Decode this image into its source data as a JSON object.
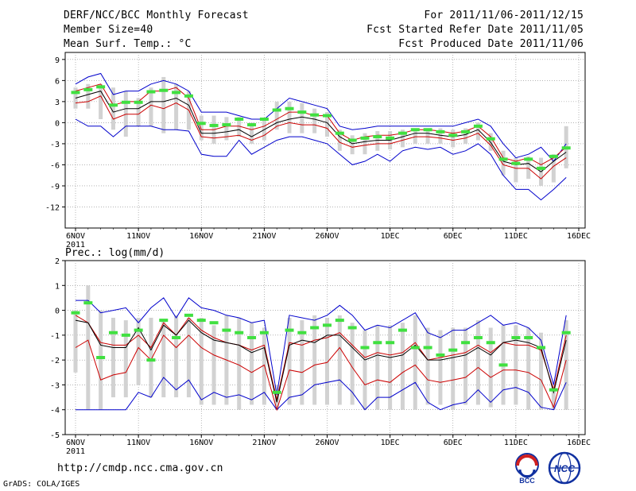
{
  "header": {
    "title": "DERF/NCC/BCC Monthly Forecast",
    "member_size": "Member Size=40",
    "variable": "Mean Surf. Temp.: °C",
    "period": "For 2011/11/06-2011/12/15",
    "start_date": "Fcst Started Refer Date 2011/11/05",
    "produced_date": "Fcst Produced Date 2011/11/06"
  },
  "footer": {
    "url": "http://cmdp.ncc.cma.gov.cn",
    "credit": "GrADS: COLA/IGES",
    "logo_left": "BCC",
    "logo_right": "NCC"
  },
  "colors": {
    "envelope": "#0000cc",
    "spread": "#cc0000",
    "mean": "#000000",
    "box": "#d2d2d2",
    "marker": "#40e040",
    "grid": "#888888"
  },
  "chart_data": [
    {
      "type": "box",
      "name": "temperature",
      "title": "Mean Surf. Temp.: °C",
      "ylim": [
        -15,
        10
      ],
      "yticks": [
        9,
        6,
        3,
        0,
        -3,
        -6,
        -9,
        -12
      ],
      "xlim": [
        0,
        40
      ],
      "xticks": [
        {
          "day": 0,
          "label": "6NOV"
        },
        {
          "day": 5,
          "label": "11NOV"
        },
        {
          "day": 10,
          "label": "16NOV"
        },
        {
          "day": 15,
          "label": "21NOV"
        },
        {
          "day": 20,
          "label": "26NOV"
        },
        {
          "day": 25,
          "label": "1DEC"
        },
        {
          "day": 30,
          "label": "6DEC"
        },
        {
          "day": 35,
          "label": "11DEC"
        },
        {
          "day": 40,
          "label": "16DEC"
        }
      ],
      "year_label": "2011",
      "x": [
        0,
        1,
        2,
        3,
        4,
        5,
        6,
        7,
        8,
        9,
        10,
        11,
        12,
        13,
        14,
        15,
        16,
        17,
        18,
        19,
        20,
        21,
        22,
        23,
        24,
        25,
        26,
        27,
        28,
        29,
        30,
        31,
        32,
        33,
        34,
        35,
        36,
        37,
        38,
        39
      ],
      "max": [
        5.5,
        6.5,
        7.0,
        4.0,
        4.5,
        4.5,
        5.5,
        6.0,
        5.5,
        4.5,
        1.5,
        1.5,
        1.5,
        1.0,
        0.5,
        0.5,
        2.0,
        3.5,
        3.0,
        2.5,
        2.0,
        -0.5,
        -1.0,
        -0.8,
        -0.5,
        -0.5,
        -0.5,
        -0.5,
        -0.5,
        -0.5,
        -0.5,
        0.0,
        0.5,
        -0.5,
        -3.0,
        -5.0,
        -4.5,
        -3.5,
        -5.5,
        -3.0
      ],
      "upper": [
        4.5,
        5.0,
        5.5,
        2.5,
        3.0,
        3.0,
        4.5,
        4.5,
        5.0,
        3.5,
        -1.0,
        -1.0,
        -0.5,
        -0.5,
        -1.0,
        -0.5,
        0.5,
        1.5,
        1.5,
        1.0,
        1.0,
        -1.5,
        -2.5,
        -2.0,
        -1.8,
        -1.8,
        -1.5,
        -1.0,
        -1.0,
        -1.2,
        -1.5,
        -1.2,
        -0.5,
        -2.0,
        -5.0,
        -5.5,
        -5.0,
        -6.0,
        -5.0,
        -3.5
      ],
      "mean": [
        3.5,
        4.0,
        4.5,
        1.5,
        2.0,
        2.0,
        3.0,
        3.0,
        3.5,
        2.5,
        -1.5,
        -1.5,
        -1.3,
        -1.0,
        -2.0,
        -1.0,
        0.0,
        0.5,
        0.8,
        0.5,
        0.0,
        -2.0,
        -3.0,
        -2.7,
        -2.5,
        -2.5,
        -2.0,
        -1.5,
        -1.5,
        -1.8,
        -2.0,
        -1.7,
        -1.0,
        -2.8,
        -5.5,
        -6.0,
        -5.8,
        -7.0,
        -5.5,
        -4.2
      ],
      "lower": [
        2.8,
        3.0,
        3.8,
        0.5,
        1.2,
        1.2,
        2.5,
        2.0,
        2.8,
        1.8,
        -2.0,
        -2.2,
        -2.0,
        -1.8,
        -2.5,
        -1.8,
        -0.5,
        0.0,
        -0.3,
        -0.3,
        -0.8,
        -2.8,
        -3.5,
        -3.2,
        -3.0,
        -3.0,
        -2.5,
        -2.0,
        -2.0,
        -2.2,
        -2.5,
        -2.2,
        -1.5,
        -3.2,
        -6.0,
        -6.5,
        -6.5,
        -8.0,
        -6.2,
        -5.0
      ],
      "min": [
        0.5,
        -0.5,
        -0.5,
        -2.0,
        -0.5,
        -0.5,
        -0.5,
        -1.0,
        -1.0,
        -1.2,
        -4.5,
        -4.8,
        -4.8,
        -2.5,
        -4.5,
        -3.5,
        -2.5,
        -2.0,
        -2.0,
        -2.5,
        -3.0,
        -4.5,
        -6.0,
        -5.5,
        -4.5,
        -5.5,
        -4.0,
        -3.5,
        -3.8,
        -3.5,
        -4.5,
        -4.0,
        -3.0,
        -4.5,
        -7.5,
        -9.5,
        -9.5,
        -11.0,
        -9.5,
        -7.8
      ],
      "box_hi": [
        5.0,
        5.5,
        5.5,
        5.0,
        4.5,
        3.5,
        5.0,
        6.5,
        5.5,
        4.5,
        1.0,
        1.0,
        0.8,
        0.8,
        0.0,
        0.5,
        3.0,
        3.0,
        2.8,
        2.0,
        1.5,
        -1.0,
        -1.8,
        -1.5,
        -1.2,
        -1.2,
        -1.0,
        -0.8,
        -0.8,
        -0.8,
        -1.0,
        -0.8,
        0.0,
        -1.5,
        -4.0,
        -5.0,
        -4.8,
        -5.0,
        -4.5,
        -0.5
      ],
      "box_lo": [
        2.0,
        2.0,
        0.5,
        -1.0,
        -2.0,
        -0.5,
        -0.5,
        -1.5,
        -1.0,
        -1.0,
        -2.5,
        -3.0,
        -2.5,
        -2.0,
        -3.0,
        -2.5,
        -1.0,
        -1.5,
        -1.5,
        -1.5,
        -2.0,
        -4.0,
        -4.5,
        -4.5,
        -4.0,
        -3.8,
        -3.5,
        -3.0,
        -3.0,
        -3.0,
        -3.5,
        -3.0,
        -2.5,
        -4.0,
        -7.5,
        -8.5,
        -8.0,
        -9.0,
        -8.5,
        -6.5
      ],
      "marker": [
        4.3,
        4.7,
        5.1,
        2.5,
        2.9,
        2.9,
        4.4,
        4.6,
        4.3,
        3.8,
        -0.1,
        -0.4,
        -0.3,
        0.5,
        -0.3,
        0.5,
        1.8,
        2.0,
        1.5,
        1.1,
        1.0,
        -1.5,
        -2.5,
        -2.2,
        -2.0,
        -2.2,
        -1.5,
        -1.0,
        -1.0,
        -1.3,
        -1.8,
        -1.3,
        -0.5,
        -2.3,
        -5.2,
        -5.8,
        -5.2,
        -6.5,
        -4.8,
        -3.6
      ]
    },
    {
      "type": "box",
      "name": "precipitation",
      "title": "Prec.: log(mm/d)",
      "ylim": [
        -5,
        2
      ],
      "yticks": [
        2,
        1,
        0,
        -1,
        -2,
        -3,
        -4,
        -5
      ],
      "xlim": [
        0,
        40
      ],
      "xticks": [
        {
          "day": 0,
          "label": "6NOV"
        },
        {
          "day": 5,
          "label": "11NOV"
        },
        {
          "day": 10,
          "label": "16NOV"
        },
        {
          "day": 15,
          "label": "21NOV"
        },
        {
          "day": 20,
          "label": "26NOV"
        },
        {
          "day": 25,
          "label": "1DEC"
        },
        {
          "day": 30,
          "label": "6DEC"
        },
        {
          "day": 35,
          "label": "11DEC"
        },
        {
          "day": 40,
          "label": "16DEC"
        }
      ],
      "year_label": "2011",
      "x": [
        0,
        1,
        2,
        3,
        4,
        5,
        6,
        7,
        8,
        9,
        10,
        11,
        12,
        13,
        14,
        15,
        16,
        17,
        18,
        19,
        20,
        21,
        22,
        23,
        24,
        25,
        26,
        27,
        28,
        29,
        30,
        31,
        32,
        33,
        34,
        35,
        36,
        37,
        38,
        39
      ],
      "max": [
        0.4,
        0.4,
        -0.1,
        0.0,
        0.1,
        -0.5,
        0.1,
        0.5,
        -0.3,
        0.5,
        0.1,
        0.0,
        -0.2,
        -0.3,
        -0.5,
        -0.4,
        -3.4,
        -0.2,
        -0.3,
        -0.4,
        -0.2,
        0.2,
        -0.2,
        -0.8,
        -0.6,
        -0.7,
        -0.4,
        -0.1,
        -0.9,
        -1.1,
        -0.8,
        -0.8,
        -0.5,
        -0.2,
        -0.6,
        -0.5,
        -0.7,
        -1.2,
        -3.0,
        -0.2
      ],
      "upper": [
        -0.2,
        -0.5,
        -1.3,
        -1.4,
        -1.4,
        -1.0,
        -1.5,
        -0.5,
        -1.0,
        -0.3,
        -0.8,
        -1.1,
        -1.3,
        -1.4,
        -1.6,
        -1.4,
        -3.6,
        -1.3,
        -1.4,
        -1.2,
        -1.1,
        -0.9,
        -1.4,
        -1.9,
        -1.7,
        -1.8,
        -1.7,
        -1.3,
        -2.0,
        -1.9,
        -1.8,
        -1.7,
        -1.4,
        -1.7,
        -1.3,
        -1.4,
        -1.4,
        -1.6,
        -3.2,
        -1.0
      ],
      "mean": [
        -0.4,
        -0.5,
        -1.4,
        -1.5,
        -1.5,
        -0.7,
        -1.6,
        -0.6,
        -1.0,
        -0.4,
        -0.9,
        -1.2,
        -1.3,
        -1.4,
        -1.7,
        -1.5,
        -3.7,
        -1.4,
        -1.2,
        -1.3,
        -1.0,
        -1.0,
        -1.5,
        -2.0,
        -1.8,
        -1.9,
        -1.8,
        -1.4,
        -2.0,
        -2.0,
        -1.9,
        -1.8,
        -1.5,
        -1.8,
        -1.3,
        -1.2,
        -1.3,
        -1.5,
        -3.3,
        -1.2
      ],
      "lower": [
        -1.5,
        -1.2,
        -2.8,
        -2.6,
        -2.5,
        -1.5,
        -2.0,
        -1.0,
        -1.5,
        -1.0,
        -1.5,
        -1.8,
        -2.0,
        -2.2,
        -2.5,
        -2.2,
        -4.0,
        -2.4,
        -2.5,
        -2.2,
        -2.1,
        -1.5,
        -2.3,
        -3.0,
        -2.8,
        -2.9,
        -2.5,
        -2.2,
        -2.8,
        -2.9,
        -2.8,
        -2.7,
        -2.3,
        -2.7,
        -2.4,
        -2.4,
        -2.5,
        -2.8,
        -3.9,
        -2.0
      ],
      "min": [
        -4.0,
        -4.0,
        -4.0,
        -4.0,
        -4.0,
        -3.3,
        -3.5,
        -2.7,
        -3.2,
        -2.8,
        -3.6,
        -3.3,
        -3.5,
        -3.4,
        -3.6,
        -3.3,
        -4.0,
        -3.5,
        -3.4,
        -3.0,
        -2.9,
        -2.8,
        -3.3,
        -4.0,
        -3.5,
        -3.5,
        -3.2,
        -2.9,
        -3.7,
        -4.0,
        -3.8,
        -3.7,
        -3.2,
        -3.7,
        -3.2,
        -3.1,
        -3.3,
        -3.9,
        -4.0,
        -2.9
      ],
      "box_hi": [
        0.0,
        1.0,
        0.0,
        -0.3,
        -0.4,
        -0.3,
        -0.3,
        -0.4,
        -0.2,
        -0.3,
        -0.3,
        -0.6,
        -0.2,
        -0.3,
        -0.5,
        -0.7,
        -3.0,
        -0.3,
        -0.4,
        -0.2,
        -0.3,
        -0.2,
        -0.5,
        -0.8,
        -0.6,
        -0.6,
        -0.5,
        -0.2,
        -0.7,
        -0.8,
        -0.7,
        -0.7,
        -0.4,
        -0.7,
        -0.6,
        -0.6,
        -0.7,
        -0.9,
        -3.0,
        -0.4
      ],
      "box_lo": [
        -2.5,
        -4.0,
        -4.0,
        -3.5,
        -3.5,
        -3.0,
        -3.5,
        -3.5,
        -3.5,
        -3.5,
        -3.8,
        -3.8,
        -3.8,
        -4.0,
        -3.8,
        -3.8,
        -4.0,
        -3.8,
        -3.8,
        -3.8,
        -3.8,
        -3.8,
        -3.8,
        -4.0,
        -4.0,
        -4.0,
        -4.0,
        -4.0,
        -3.8,
        -3.8,
        -4.0,
        -3.8,
        -3.8,
        -3.9,
        -3.8,
        -3.8,
        -4.0,
        -4.0,
        -4.0,
        -4.0
      ],
      "marker": [
        -0.1,
        0.3,
        -1.9,
        -0.9,
        -1.0,
        -0.8,
        -2.0,
        -0.4,
        -1.1,
        -0.2,
        -0.4,
        -0.5,
        -0.8,
        -0.9,
        -1.1,
        -0.9,
        -3.3,
        -0.8,
        -0.9,
        -0.7,
        -0.6,
        -0.4,
        -0.7,
        -1.5,
        -1.3,
        -1.3,
        -0.8,
        -1.5,
        -1.5,
        -1.8,
        -1.6,
        -1.3,
        -1.1,
        -1.3,
        -2.2,
        -1.1,
        -1.1,
        -1.5,
        -3.2,
        -0.9
      ]
    }
  ]
}
